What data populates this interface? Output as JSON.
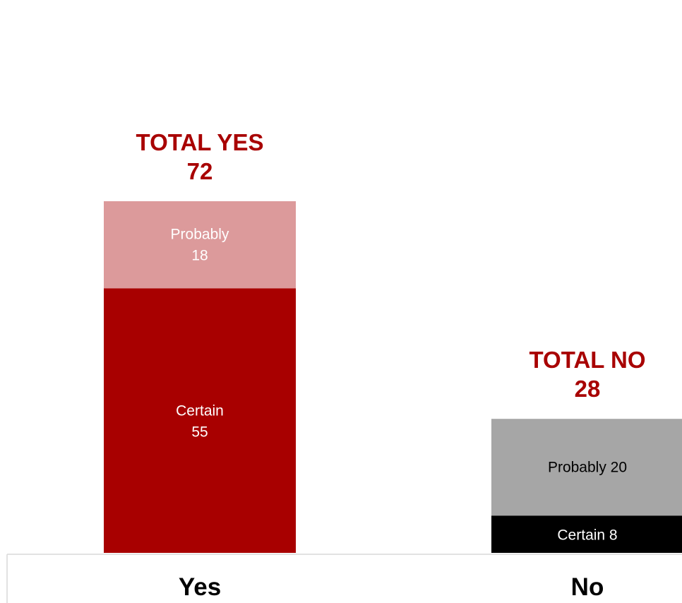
{
  "chart_data": {
    "type": "bar",
    "stacked": true,
    "categories": [
      "Yes",
      "No"
    ],
    "bars": [
      {
        "category": "Yes",
        "total_title": "TOTAL YES",
        "total_value": "72",
        "segments": [
          {
            "label_lines": [
              "Certain",
              "55"
            ],
            "value": 55,
            "color": "#a80000",
            "text_color": "#ffffff"
          },
          {
            "label_lines": [
              "Probably",
              "18"
            ],
            "value": 18,
            "color": "#dc9a9b",
            "text_color": "#ffffff"
          }
        ]
      },
      {
        "category": "No",
        "total_title": "TOTAL NO",
        "total_value": "28",
        "segments": [
          {
            "label_lines": [
              "Certain 8"
            ],
            "value": 8,
            "color": "#000000",
            "text_color": "#ffffff"
          },
          {
            "label_lines": [
              "Probably 20"
            ],
            "value": 20,
            "color": "#a6a6a6",
            "text_color": "#000000"
          }
        ]
      }
    ],
    "total_label_color": "#a80000",
    "axis_line_color": "#d9d9d9",
    "ylim": [
      0,
      100
    ],
    "grid": false,
    "legend": "none"
  }
}
